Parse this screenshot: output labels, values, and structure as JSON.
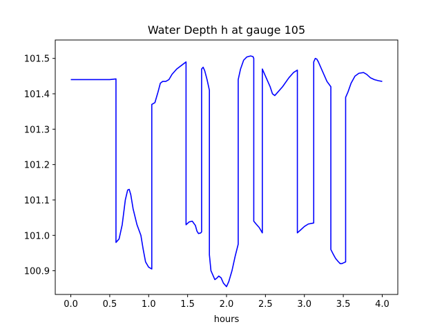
{
  "chart_data": {
    "type": "line",
    "title": "Water Depth h at gauge 105",
    "xlabel": "hours",
    "ylabel": "",
    "xlim": [
      -0.2,
      4.2
    ],
    "ylim": [
      100.833,
      101.552
    ],
    "xticks": [
      0.0,
      0.5,
      1.0,
      1.5,
      2.0,
      2.5,
      3.0,
      3.5,
      4.0
    ],
    "xtick_labels": [
      "0.0",
      "0.5",
      "1.0",
      "1.5",
      "2.0",
      "2.5",
      "3.0",
      "3.5",
      "4.0"
    ],
    "yticks": [
      100.9,
      101.0,
      101.1,
      101.2,
      101.3,
      101.4,
      101.5
    ],
    "ytick_labels": [
      "100.9",
      "101.0",
      "101.1",
      "101.2",
      "101.3",
      "101.4",
      "101.5"
    ],
    "grid": false,
    "legend": "none",
    "series": [
      {
        "color": "#0000ff",
        "x": [
          0.0,
          0.3,
          0.5,
          0.58,
          0.58,
          0.62,
          0.66,
          0.7,
          0.73,
          0.75,
          0.77,
          0.8,
          0.85,
          0.9,
          0.93,
          0.96,
          1.0,
          1.04,
          1.04,
          1.08,
          1.12,
          1.15,
          1.18,
          1.22,
          1.26,
          1.3,
          1.36,
          1.42,
          1.48,
          1.48,
          1.52,
          1.56,
          1.6,
          1.62,
          1.64,
          1.67,
          1.68,
          1.68,
          1.7,
          1.72,
          1.75,
          1.78,
          1.78,
          1.8,
          1.85,
          1.88,
          1.9,
          1.93,
          1.96,
          2.0,
          2.03,
          2.07,
          2.11,
          2.15,
          2.15,
          2.18,
          2.22,
          2.26,
          2.31,
          2.34,
          2.35,
          2.35,
          2.38,
          2.42,
          2.46,
          2.46,
          2.49,
          2.53,
          2.56,
          2.59,
          2.62,
          2.66,
          2.72,
          2.8,
          2.86,
          2.91,
          2.91,
          2.95,
          3.0,
          3.05,
          3.1,
          3.12,
          3.12,
          3.14,
          3.16,
          3.18,
          3.21,
          3.25,
          3.29,
          3.34,
          3.34,
          3.37,
          3.4,
          3.43,
          3.46,
          3.48,
          3.5,
          3.53,
          3.53,
          3.56,
          3.6,
          3.65,
          3.7,
          3.76,
          3.8,
          3.85,
          3.9,
          3.95,
          4.0
        ],
        "y": [
          101.44,
          101.44,
          101.44,
          101.442,
          100.98,
          100.99,
          101.03,
          101.1,
          101.128,
          101.13,
          101.115,
          101.075,
          101.03,
          101.0,
          100.96,
          100.925,
          100.91,
          100.905,
          101.37,
          101.375,
          101.405,
          101.43,
          101.435,
          101.435,
          101.44,
          101.455,
          101.47,
          101.48,
          101.49,
          101.03,
          101.038,
          101.04,
          101.028,
          101.012,
          101.005,
          101.007,
          101.01,
          101.47,
          101.475,
          101.465,
          101.44,
          101.41,
          100.945,
          100.9,
          100.875,
          100.88,
          100.885,
          100.88,
          100.865,
          100.855,
          100.87,
          100.9,
          100.94,
          100.975,
          101.44,
          101.47,
          101.495,
          101.504,
          101.507,
          101.505,
          101.5,
          101.04,
          101.032,
          101.022,
          101.007,
          101.47,
          101.455,
          101.435,
          101.42,
          101.4,
          101.395,
          101.405,
          101.42,
          101.445,
          101.46,
          101.467,
          101.007,
          101.015,
          101.025,
          101.032,
          101.034,
          101.035,
          101.49,
          101.5,
          101.498,
          101.49,
          101.475,
          101.455,
          101.435,
          101.42,
          100.96,
          100.947,
          100.935,
          100.927,
          100.92,
          100.92,
          100.922,
          100.925,
          101.39,
          101.405,
          101.43,
          101.45,
          101.458,
          101.46,
          101.455,
          101.445,
          101.44,
          101.437,
          101.435
        ]
      }
    ]
  }
}
